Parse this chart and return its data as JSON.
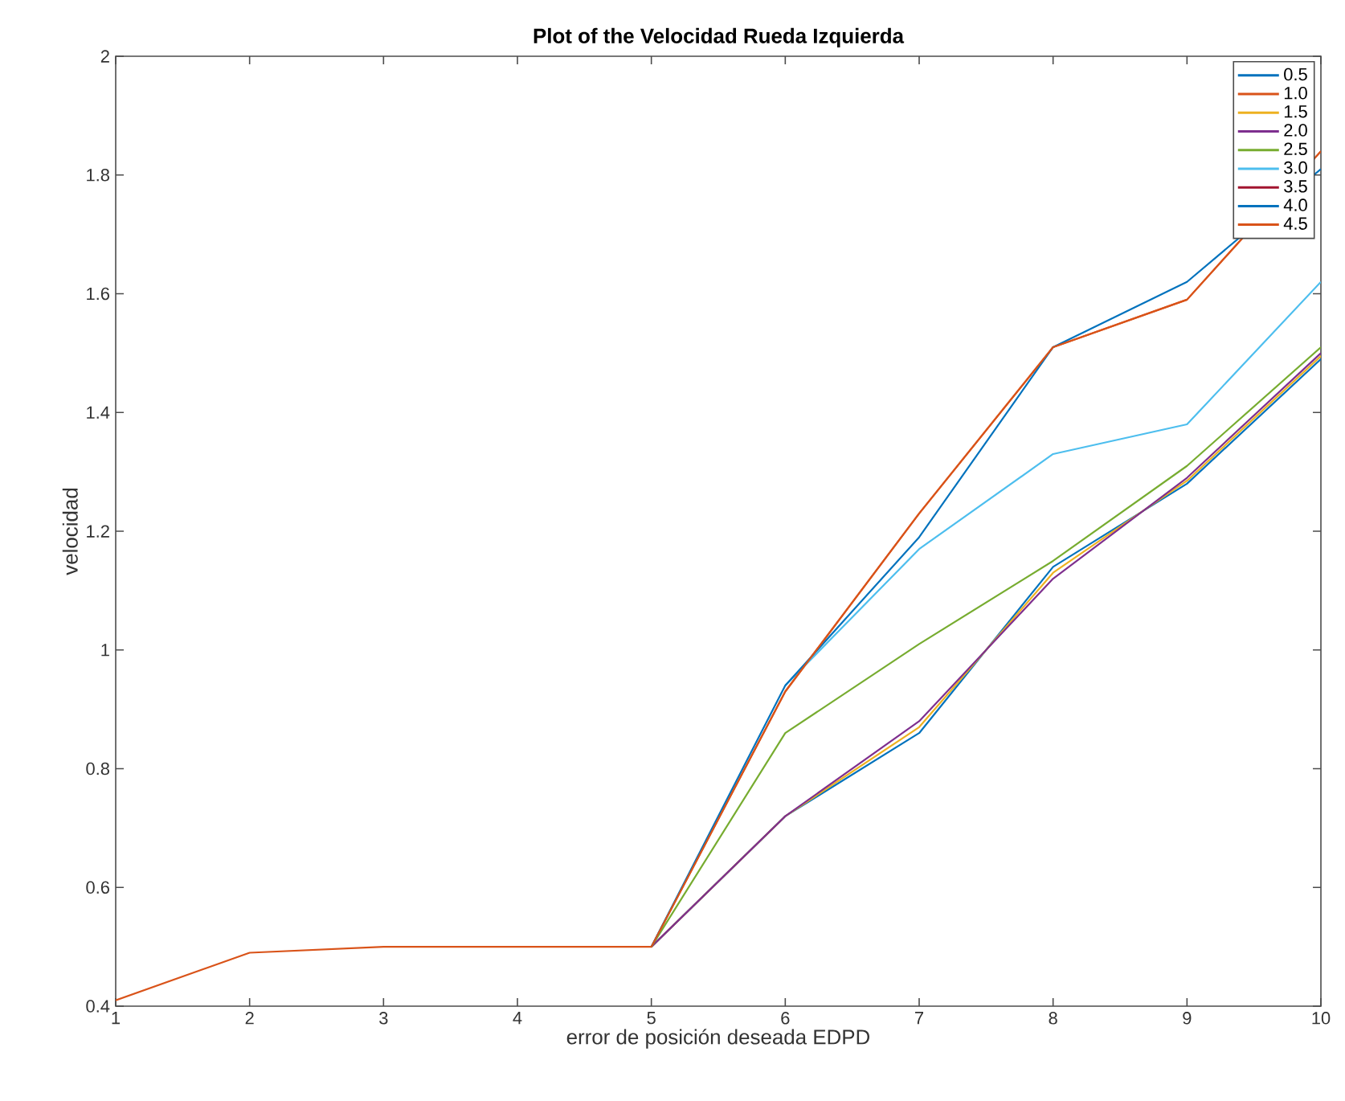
{
  "chart_data": {
    "type": "line",
    "title": "Plot of the Velocidad Rueda Izquierda",
    "xlabel": "error de posición deseada EDPD",
    "ylabel": "velocidad",
    "x": [
      1,
      2,
      3,
      4,
      5,
      6,
      7,
      8,
      9,
      10
    ],
    "series": [
      {
        "name": "0.5",
        "color": "#0072bd",
        "values": [
          null,
          null,
          null,
          null,
          0.5,
          0.72,
          0.86,
          1.14,
          1.28,
          1.49
        ]
      },
      {
        "name": "1.0",
        "color": "#d95319",
        "values": [
          null,
          null,
          null,
          null,
          0.5,
          0.93,
          1.23,
          1.51,
          1.59,
          1.84
        ]
      },
      {
        "name": "1.5",
        "color": "#edb120",
        "values": [
          null,
          null,
          null,
          null,
          0.5,
          0.72,
          0.87,
          1.13,
          1.285,
          1.495
        ]
      },
      {
        "name": "2.0",
        "color": "#7e2f8e",
        "values": [
          null,
          null,
          null,
          null,
          0.5,
          0.72,
          0.88,
          1.12,
          1.29,
          1.5
        ]
      },
      {
        "name": "2.5",
        "color": "#77ac30",
        "values": [
          null,
          null,
          null,
          null,
          0.5,
          0.86,
          1.01,
          1.15,
          1.31,
          1.51
        ]
      },
      {
        "name": "3.0",
        "color": "#4dbeee",
        "values": [
          null,
          null,
          null,
          null,
          null,
          0.94,
          1.17,
          1.33,
          1.38,
          1.62
        ]
      },
      {
        "name": "3.5",
        "color": "#a2142f",
        "values": [
          null,
          null,
          null,
          null,
          null,
          null,
          null,
          null,
          null,
          null
        ]
      },
      {
        "name": "4.0",
        "color": "#0072bd",
        "values": [
          null,
          null,
          null,
          null,
          0.5,
          0.94,
          1.19,
          1.51,
          1.62,
          1.81
        ]
      },
      {
        "name": "4.5",
        "color": "#d95319",
        "values": [
          0.41,
          0.49,
          0.5,
          0.5,
          0.5,
          0.93,
          1.23,
          1.51,
          1.59,
          1.84
        ]
      }
    ],
    "xlim": [
      1,
      10
    ],
    "ylim": [
      0.4,
      2
    ],
    "xticks": [
      1,
      2,
      3,
      4,
      5,
      6,
      7,
      8,
      9,
      10
    ],
    "yticks": [
      0.4,
      0.6,
      0.8,
      1,
      1.2,
      1.4,
      1.6,
      1.8,
      2
    ],
    "grid": false,
    "legend": "top right",
    "marker": "none",
    "line_style": "solid"
  }
}
